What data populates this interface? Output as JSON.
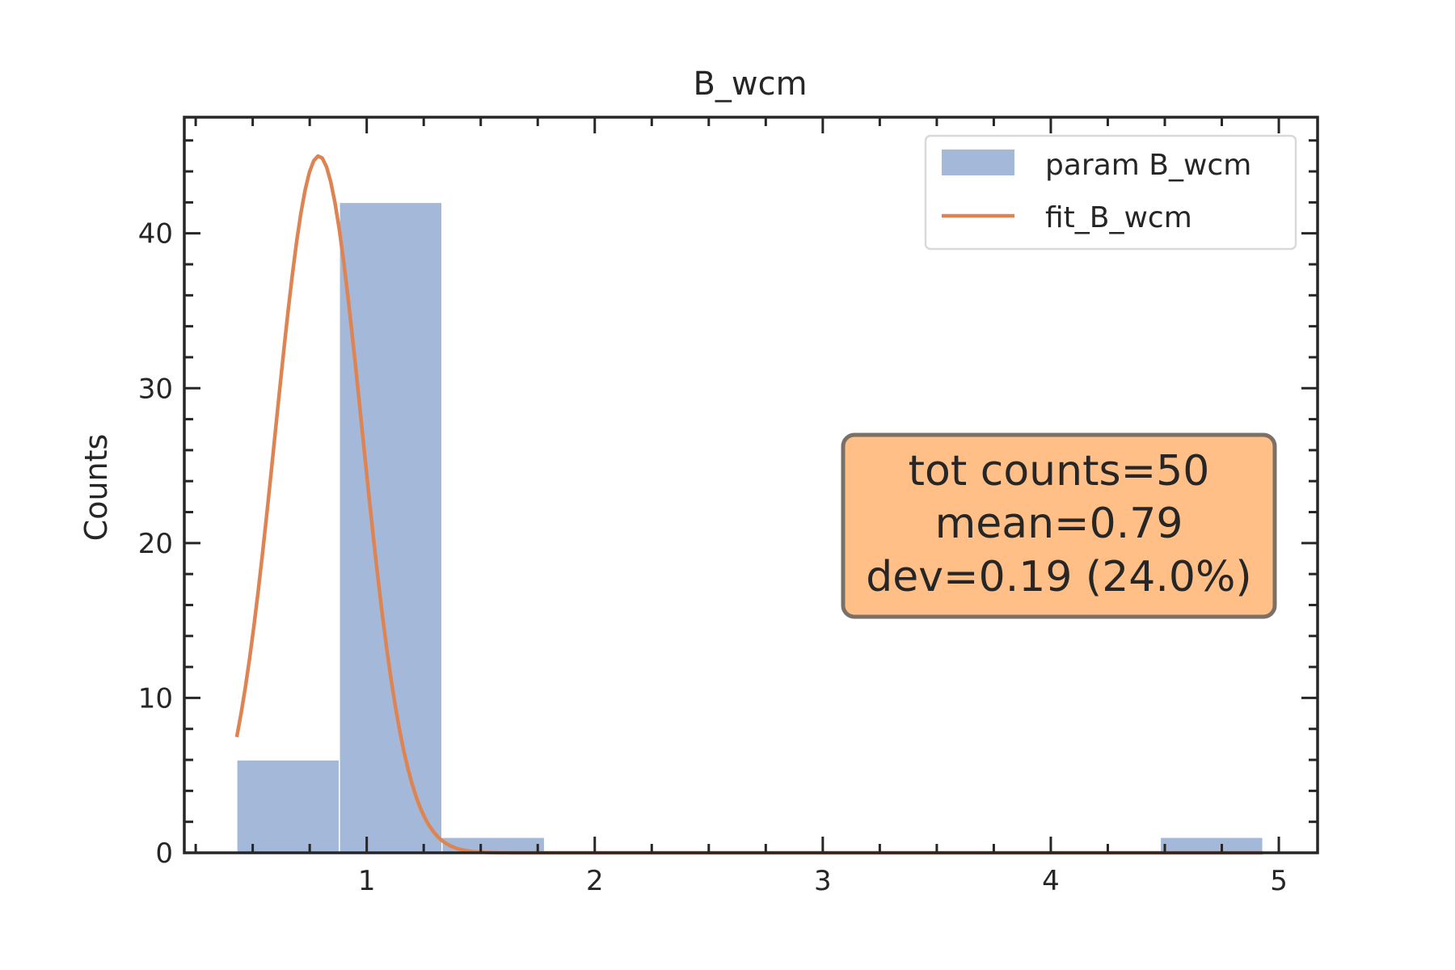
{
  "chart_data": {
    "type": "bar",
    "title": "B_wcm",
    "xlabel": "",
    "ylabel": "Counts",
    "xlim": [
      0.2,
      5.17
    ],
    "ylim": [
      0,
      47.5
    ],
    "xticks": [
      1,
      2,
      3,
      4,
      5
    ],
    "yticks": [
      0,
      10,
      20,
      30,
      40
    ],
    "grid": false,
    "legend_position": "top-right",
    "histogram": {
      "name": "param B_wcm",
      "color": "#a4b8d9",
      "bins": [
        {
          "x0": 0.43,
          "x1": 0.88,
          "count": 6
        },
        {
          "x0": 0.88,
          "x1": 1.33,
          "count": 42
        },
        {
          "x0": 1.33,
          "x1": 1.78,
          "count": 1
        },
        {
          "x0": 1.78,
          "x1": 2.23,
          "count": 0
        },
        {
          "x0": 2.23,
          "x1": 2.68,
          "count": 0
        },
        {
          "x0": 2.68,
          "x1": 3.13,
          "count": 0
        },
        {
          "x0": 3.13,
          "x1": 3.58,
          "count": 0
        },
        {
          "x0": 3.58,
          "x1": 4.03,
          "count": 0
        },
        {
          "x0": 4.03,
          "x1": 4.48,
          "count": 0
        },
        {
          "x0": 4.48,
          "x1": 4.93,
          "count": 1
        }
      ]
    },
    "fit": {
      "name": "fit_B_wcm",
      "color": "#dd8452",
      "model": "gaussian",
      "amplitude": 45,
      "mean": 0.79,
      "sigma": 0.19,
      "x_range": [
        0.43,
        4.93
      ]
    },
    "stats_box": {
      "lines": [
        "tot counts=50",
        "mean=0.79",
        "dev=0.19 (24.0%)"
      ],
      "fill": "#ffbf86",
      "edge": "#7a7068"
    }
  }
}
